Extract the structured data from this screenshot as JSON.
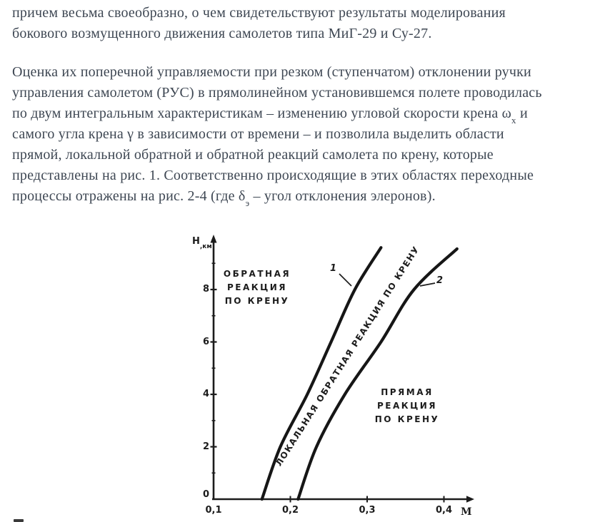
{
  "page": {
    "background": "#ffffff",
    "text_color": "#3e4753",
    "ink_color": "#1c1c1c"
  },
  "article": {
    "p1": [
      "причем весьма своеобразно, о чем свидетельствуют результаты моделирования",
      "бокового возмущенного движения самолетов типа МиГ-29 и Су-27."
    ],
    "p2": [
      "Оценка их поперечной управляемости при резком (ступенчатом) отклонении ручки",
      "управления самолетом (РУС) в прямолинейном установившемся полете проводилась",
      {
        "pre": "по двум интегральным характеристикам – изменению угловой скорости крена ω",
        "sub": "x",
        "post": " и"
      },
      "самого угла крена γ в зависимости от времени – и позволила выделить области",
      "прямой, локальной обратной и обратной реакций самолета по крену, которые",
      "представлены на рис. 1. Соответственно происходящие в этих областях переходные",
      {
        "pre": "процессы отражены на рис. 2-4 (где δ",
        "sub": "э",
        "post": " – угол отклонения элеронов)."
      }
    ]
  },
  "chart_data": {
    "type": "line",
    "title": "",
    "xlabel": "М",
    "ylabel_main": "Н",
    "ylabel_sub": ",км",
    "xlim": [
      0.1,
      0.44
    ],
    "ylim": [
      0,
      10.3
    ],
    "grid": false,
    "x_ticks": [
      {
        "label": "0,1",
        "value": 0.1,
        "mark": false
      },
      {
        "label": "0,2",
        "value": 0.2,
        "mark": true
      },
      {
        "label": "0,3",
        "value": 0.3,
        "mark": true
      },
      {
        "label": "0,4",
        "value": 0.4,
        "mark": true
      }
    ],
    "y_ticks": [
      {
        "label": "0",
        "value": 0
      },
      {
        "label": "2",
        "value": 2
      },
      {
        "label": "4",
        "value": 4
      },
      {
        "label": "6",
        "value": 6
      },
      {
        "label": "8",
        "value": 8
      }
    ],
    "y_minor_ticks": [
      1,
      3,
      5,
      7,
      9
    ],
    "series": [
      {
        "name": "1",
        "points": [
          [
            0.163,
            0
          ],
          [
            0.187,
            2
          ],
          [
            0.222,
            4
          ],
          [
            0.253,
            6
          ],
          [
            0.284,
            8
          ],
          [
            0.318,
            9.6
          ]
        ]
      },
      {
        "name": "2",
        "points": [
          [
            0.21,
            0
          ],
          [
            0.234,
            2
          ],
          [
            0.271,
            4
          ],
          [
            0.318,
            6
          ],
          [
            0.361,
            8
          ],
          [
            0.417,
            9.55
          ]
        ]
      }
    ],
    "regions": {
      "reverse": [
        "ОБРАТНАЯ",
        "РЕАКЦИЯ",
        "ПО КРЕНУ"
      ],
      "local_reverse": "ЛОКАЛЬНАЯ  ОБРАТНАЯ  РЕАКЦИЯ  ПО КРЕНУ",
      "direct": [
        "ПРЯМАЯ",
        "РЕАКЦИЯ",
        "ПО КРЕНУ"
      ]
    }
  }
}
